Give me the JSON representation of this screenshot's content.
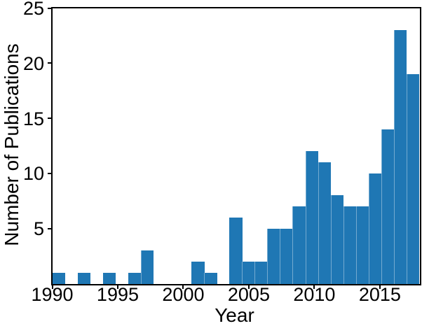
{
  "chart_data": {
    "type": "bar",
    "subtype": "histogram",
    "title": "",
    "xlabel": "Year",
    "ylabel": "Number of Publications",
    "xlim": [
      1990,
      2018
    ],
    "ylim": [
      0,
      25
    ],
    "xticks": [
      "1990",
      "1995",
      "2000",
      "2005",
      "2010",
      "2015"
    ],
    "yticks": [
      "5",
      "10",
      "15",
      "20",
      "25"
    ],
    "bins": 29,
    "bin_width_years": 0.9655,
    "categories": [
      1990,
      1991,
      1992,
      1993,
      1994,
      1995,
      1996,
      1997,
      1998,
      1999,
      2000,
      2001,
      2002,
      2003,
      2004,
      2005,
      2006,
      2007,
      2008,
      2009,
      2010,
      2011,
      2012,
      2013,
      2014,
      2015,
      2016,
      2017,
      2018
    ],
    "values": [
      1,
      0,
      1,
      0,
      1,
      0,
      1,
      3,
      0,
      0,
      0,
      2,
      1,
      0,
      6,
      2,
      2,
      5,
      5,
      7,
      12,
      11,
      8,
      7,
      7,
      10,
      14,
      23,
      19
    ],
    "total_publications": 148,
    "grid": false,
    "legend": null,
    "colors": {
      "bar": "#1f77b4",
      "axis": "#000000",
      "background": "#ffffff"
    }
  }
}
